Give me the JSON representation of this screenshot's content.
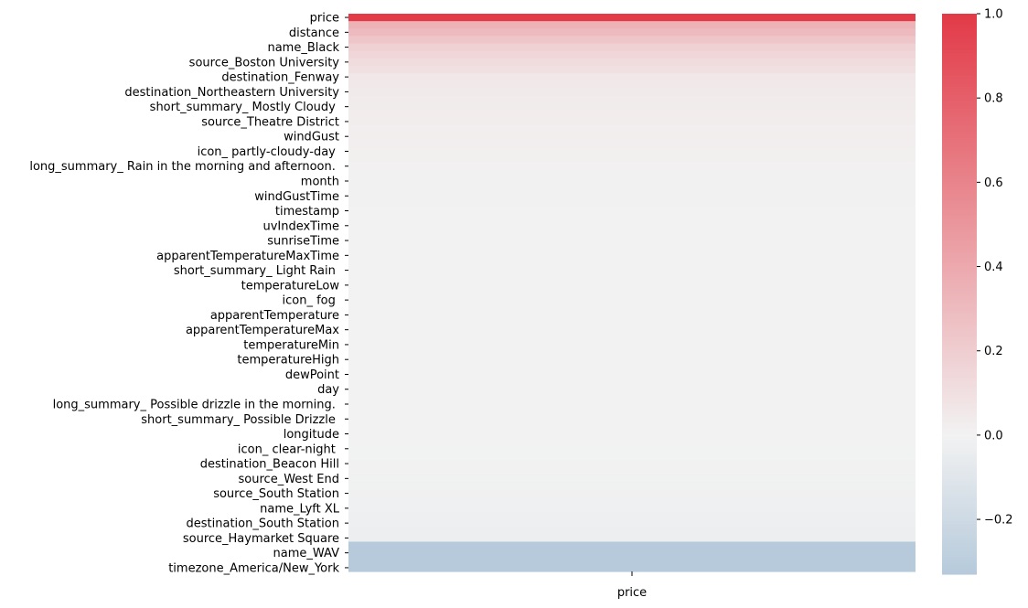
{
  "chart_data": {
    "type": "heatmap",
    "title": "",
    "xlabel": "",
    "ylabel": "",
    "x_categories": [
      "price"
    ],
    "y_labels": [
      "price",
      "distance",
      "name_Black",
      "source_Boston University",
      "destination_Fenway",
      "destination_Northeastern University",
      "short_summary_ Mostly Cloudy ",
      "source_Theatre District",
      "windGust",
      "icon_ partly-cloudy-day ",
      "long_summary_ Rain in the morning and afternoon. ",
      "month",
      "windGustTime",
      "timestamp",
      "uvIndexTime",
      "sunriseTime",
      "apparentTemperatureMaxTime",
      "short_summary_ Light Rain ",
      "temperatureLow",
      "icon_ fog ",
      "apparentTemperature",
      "apparentTemperatureMax",
      "temperatureMin",
      "temperatureHigh",
      "dewPoint",
      "day",
      "long_summary_ Possible drizzle in the morning. ",
      "short_summary_ Possible Drizzle ",
      "longitude",
      "icon_ clear-night ",
      "destination_Beacon Hill",
      "source_West End",
      "source_South Station",
      "name_Lyft XL",
      "destination_South Station",
      "source_Haymarket Square",
      "name_WAV",
      "timezone_America/New_York"
    ],
    "row_count": 75,
    "values": [
      1.0,
      0.35,
      0.3,
      0.24,
      0.18,
      0.15,
      0.12,
      0.1,
      0.06,
      0.05,
      0.045,
      0.04,
      0.035,
      0.03,
      0.028,
      0.025,
      0.022,
      0.02,
      0.018,
      0.015,
      0.012,
      0.008,
      0.006,
      0.005,
      0.004,
      0.003,
      0.002,
      0.002,
      0.001,
      0.001,
      0.001,
      0.001,
      0.0,
      0.0,
      0.0,
      0.0,
      0.0,
      0.0,
      0.0,
      0.0,
      0.0,
      0.0,
      0.0,
      0.0,
      0.0,
      0.0,
      0.0,
      0.0,
      0.0,
      0.0,
      0.0,
      0.0,
      0.0,
      0.0,
      0.0,
      -0.001,
      -0.001,
      -0.002,
      -0.003,
      -0.004,
      -0.005,
      -0.007,
      -0.009,
      -0.011,
      -0.013,
      -0.016,
      -0.019,
      -0.022,
      -0.026,
      -0.03,
      -0.035,
      -0.33,
      -0.33,
      -0.33,
      -0.33
    ],
    "colorbar": {
      "min": -0.33,
      "max": 1.0,
      "ticks": [
        "1.0",
        "0.8",
        "0.6",
        "0.4",
        "0.2",
        "0.0",
        "−0.2"
      ],
      "tick_values": [
        1.0,
        0.8,
        0.6,
        0.4,
        0.2,
        0.0,
        -0.2
      ],
      "colormap": "diverging",
      "color_low": "#b6cadb",
      "color_mid": "#f2f2f2",
      "color_high": "#e23a47"
    },
    "grid": false,
    "legend": "colorbar-right"
  }
}
